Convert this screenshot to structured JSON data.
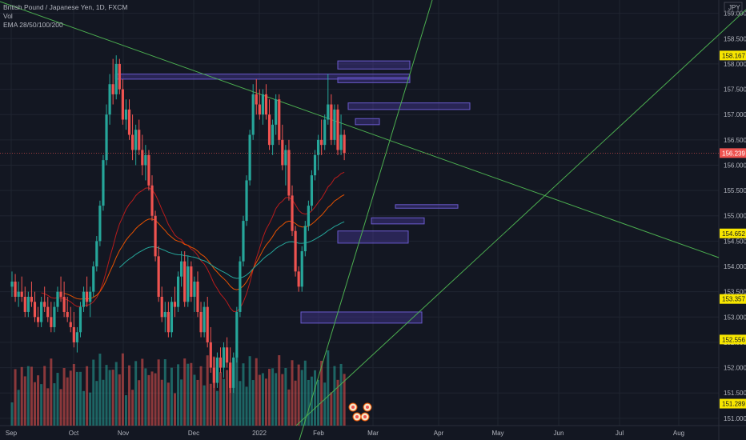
{
  "legend": {
    "symbol": "British Pound / Japanese Yen, 1D, FXCM",
    "vol": "Vol",
    "ema": "EMA 28/50/100/200"
  },
  "currency": "JPY",
  "colors": {
    "background": "#131722",
    "grid": "#1f2430",
    "up": "#26a69a",
    "down": "#ef5350",
    "trendline": "#4caf50",
    "zone_fill": "rgba(82,62,180,0.35)",
    "zone_stroke": "#6a5acd",
    "tag_yellow": "#f7e600",
    "tag_red": "#ef5350"
  },
  "price_tags": [
    {
      "value": "158.167",
      "price": 158.167,
      "style": "yellow"
    },
    {
      "value": "156.239",
      "price": 156.239,
      "style": "red"
    },
    {
      "value": "154.652",
      "price": 154.652,
      "style": "yellow"
    },
    {
      "value": "153.357",
      "price": 153.357,
      "style": "yellow"
    },
    {
      "value": "152.556",
      "price": 152.556,
      "style": "yellow"
    },
    {
      "value": "151.289",
      "price": 151.289,
      "style": "yellow"
    }
  ],
  "chart_data": {
    "type": "candlestick",
    "title": "British Pound / Japanese Yen, 1D, FXCM",
    "x_ticks": [
      "Sep",
      "Oct",
      "Nov",
      "Dec",
      "2022",
      "Feb",
      "Mar",
      "Apr",
      "May",
      "Jun",
      "Jul",
      "Aug"
    ],
    "y_ticks": [
      "159.000",
      "158.500",
      "158.000",
      "157.500",
      "157.000",
      "156.500",
      "156.000",
      "155.500",
      "155.000",
      "154.500",
      "154.000",
      "153.500",
      "153.000",
      "152.500",
      "152.000",
      "151.500",
      "151.000"
    ],
    "ylim": [
      150.95,
      159.2
    ],
    "last_price": 156.239,
    "zones": [
      {
        "from": "Nov",
        "to": "Feb",
        "high": 157.8,
        "low": 157.7
      },
      {
        "from": "Feb",
        "to": "Mar",
        "high": 158.06,
        "low": 157.9
      },
      {
        "from": "Feb",
        "to": "Mar",
        "high": 157.73,
        "low": 157.63
      },
      {
        "from": "Feb",
        "to": "Mar",
        "high": 157.23,
        "low": 157.1
      },
      {
        "from": "Feb",
        "to": "Mar",
        "high": 156.92,
        "low": 156.8
      },
      {
        "from": "Mar",
        "to": "Apr",
        "high": 155.22,
        "low": 155.15
      },
      {
        "from": "Feb",
        "to": "Mar",
        "high": 154.96,
        "low": 154.84
      },
      {
        "from": "Feb",
        "to": "Mar",
        "high": 154.7,
        "low": 154.46
      },
      {
        "from": "Jan",
        "to": "Mar",
        "high": 153.1,
        "low": 152.88
      }
    ],
    "candles": [
      [
        0,
        153.6,
        153.9,
        153.4,
        153.7
      ],
      [
        1,
        153.7,
        153.85,
        153.3,
        153.4
      ],
      [
        2,
        153.4,
        153.7,
        153.2,
        153.5
      ],
      [
        3,
        153.5,
        153.8,
        153.3,
        153.4
      ],
      [
        4,
        153.4,
        153.6,
        153.0,
        153.1
      ],
      [
        5,
        153.1,
        153.5,
        153.0,
        153.4
      ],
      [
        6,
        153.4,
        153.7,
        153.2,
        153.3
      ],
      [
        7,
        153.3,
        153.5,
        152.9,
        153.0
      ],
      [
        8,
        153.0,
        153.2,
        152.8,
        152.9
      ],
      [
        9,
        152.9,
        153.4,
        152.8,
        153.3
      ],
      [
        10,
        153.3,
        153.6,
        153.1,
        153.2
      ],
      [
        11,
        153.2,
        153.4,
        152.9,
        153.0
      ],
      [
        12,
        153.0,
        153.3,
        152.7,
        152.8
      ],
      [
        13,
        152.8,
        153.3,
        152.7,
        153.2
      ],
      [
        14,
        153.2,
        153.6,
        153.1,
        153.5
      ],
      [
        15,
        153.5,
        153.8,
        153.3,
        153.4
      ],
      [
        16,
        153.4,
        153.7,
        153.0,
        153.1
      ],
      [
        17,
        153.1,
        153.4,
        152.9,
        153.0
      ],
      [
        18,
        152.9,
        153.2,
        152.7,
        152.8
      ],
      [
        19,
        152.8,
        153.1,
        152.4,
        152.5
      ],
      [
        20,
        152.5,
        152.8,
        152.3,
        152.7
      ],
      [
        21,
        152.7,
        153.3,
        152.6,
        153.2
      ],
      [
        22,
        153.2,
        153.6,
        153.1,
        153.5
      ],
      [
        23,
        153.5,
        153.8,
        153.2,
        153.3
      ],
      [
        24,
        153.3,
        153.6,
        153.0,
        153.5
      ],
      [
        25,
        153.5,
        154.1,
        153.4,
        154.0
      ],
      [
        26,
        154.0,
        154.6,
        153.9,
        154.5
      ],
      [
        27,
        154.5,
        155.3,
        154.4,
        155.2
      ],
      [
        28,
        155.2,
        156.2,
        155.1,
        156.1
      ],
      [
        29,
        156.1,
        157.2,
        156.0,
        157.0
      ],
      [
        30,
        157.0,
        157.8,
        156.8,
        157.6
      ],
      [
        31,
        157.6,
        158.1,
        157.2,
        157.4
      ],
      [
        32,
        157.4,
        158.17,
        157.3,
        158.0
      ],
      [
        33,
        158.0,
        158.1,
        157.4,
        157.5
      ],
      [
        34,
        157.5,
        157.7,
        156.8,
        156.9
      ],
      [
        35,
        156.9,
        157.3,
        156.7,
        157.1
      ],
      [
        36,
        157.1,
        157.3,
        156.5,
        156.6
      ],
      [
        37,
        156.6,
        157.0,
        156.1,
        156.3
      ],
      [
        38,
        156.3,
        156.8,
        156.0,
        156.7
      ],
      [
        39,
        156.7,
        156.9,
        156.2,
        156.3
      ],
      [
        40,
        156.3,
        156.6,
        155.8,
        156.0
      ],
      [
        41,
        156.0,
        156.4,
        155.7,
        156.2
      ],
      [
        42,
        156.2,
        156.3,
        155.5,
        155.6
      ],
      [
        43,
        155.6,
        155.8,
        154.9,
        155.0
      ],
      [
        44,
        155.0,
        155.1,
        154.1,
        154.2
      ],
      [
        45,
        154.2,
        154.4,
        153.3,
        153.4
      ],
      [
        46,
        153.4,
        153.6,
        152.9,
        153.0
      ],
      [
        47,
        153.0,
        153.3,
        152.7,
        153.1
      ],
      [
        48,
        153.1,
        153.3,
        152.6,
        152.7
      ],
      [
        49,
        152.7,
        153.4,
        152.6,
        153.3
      ],
      [
        50,
        153.3,
        153.6,
        153.0,
        153.2
      ],
      [
        51,
        153.2,
        153.9,
        153.1,
        153.8
      ],
      [
        52,
        153.8,
        154.3,
        153.6,
        154.1
      ],
      [
        53,
        154.1,
        154.3,
        153.2,
        153.3
      ],
      [
        54,
        153.3,
        154.2,
        153.2,
        154.0
      ],
      [
        55,
        154.0,
        154.1,
        153.3,
        153.4
      ],
      [
        56,
        153.4,
        153.8,
        153.1,
        153.7
      ],
      [
        57,
        153.7,
        153.9,
        153.0,
        153.1
      ],
      [
        58,
        153.1,
        153.3,
        152.6,
        152.7
      ],
      [
        59,
        152.7,
        153.3,
        152.6,
        153.2
      ],
      [
        60,
        153.2,
        153.4,
        152.4,
        152.5
      ],
      [
        61,
        152.5,
        152.8,
        151.9,
        152.0
      ],
      [
        62,
        152.0,
        152.2,
        151.6,
        151.7
      ],
      [
        63,
        151.7,
        152.3,
        151.6,
        152.2
      ],
      [
        64,
        152.2,
        152.4,
        151.9,
        152.0
      ],
      [
        65,
        152.0,
        152.5,
        151.8,
        152.4
      ],
      [
        66,
        152.4,
        152.6,
        152.0,
        152.1
      ],
      [
        67,
        152.1,
        152.4,
        151.5,
        151.6
      ],
      [
        68,
        151.6,
        152.3,
        151.5,
        152.2
      ],
      [
        69,
        152.2,
        153.2,
        152.1,
        153.1
      ],
      [
        70,
        153.1,
        154.2,
        153.0,
        154.1
      ],
      [
        71,
        154.1,
        155.0,
        154.0,
        154.9
      ],
      [
        72,
        154.9,
        155.8,
        154.8,
        155.7
      ],
      [
        73,
        155.7,
        156.7,
        155.6,
        156.6
      ],
      [
        74,
        156.6,
        157.6,
        156.5,
        157.4
      ],
      [
        75,
        157.4,
        157.7,
        157.0,
        157.2
      ],
      [
        76,
        157.2,
        157.5,
        156.9,
        157.0
      ],
      [
        77,
        157.0,
        157.5,
        156.8,
        157.4
      ],
      [
        78,
        157.4,
        157.6,
        156.9,
        157.0
      ],
      [
        79,
        157.0,
        157.3,
        156.3,
        156.4
      ],
      [
        80,
        156.4,
        156.9,
        156.2,
        156.8
      ],
      [
        81,
        156.8,
        157.4,
        156.6,
        157.3
      ],
      [
        82,
        157.3,
        157.4,
        156.4,
        156.5
      ],
      [
        83,
        156.5,
        156.8,
        155.9,
        156.0
      ],
      [
        84,
        156.0,
        156.4,
        155.6,
        156.3
      ],
      [
        85,
        156.3,
        156.5,
        155.3,
        155.4
      ],
      [
        86,
        155.4,
        155.6,
        154.6,
        154.7
      ],
      [
        87,
        154.7,
        154.8,
        153.8,
        153.9
      ],
      [
        88,
        153.9,
        154.0,
        153.5,
        153.6
      ],
      [
        89,
        153.6,
        154.4,
        153.5,
        154.3
      ],
      [
        90,
        154.3,
        154.9,
        154.2,
        154.8
      ],
      [
        91,
        154.8,
        155.3,
        154.7,
        155.2
      ],
      [
        92,
        155.2,
        155.9,
        155.1,
        155.8
      ],
      [
        93,
        155.8,
        156.3,
        155.7,
        156.2
      ],
      [
        94,
        156.2,
        156.6,
        155.9,
        156.5
      ],
      [
        95,
        156.5,
        156.9,
        156.2,
        156.4
      ],
      [
        96,
        156.4,
        157.0,
        156.3,
        156.9
      ],
      [
        97,
        156.9,
        157.8,
        156.8,
        157.2
      ],
      [
        98,
        157.2,
        157.4,
        156.4,
        156.5
      ],
      [
        99,
        156.5,
        157.2,
        156.4,
        157.1
      ],
      [
        100,
        157.1,
        157.2,
        156.2,
        156.3
      ],
      [
        101,
        156.3,
        157.0,
        156.2,
        156.6
      ],
      [
        102,
        156.6,
        156.7,
        156.1,
        156.24
      ]
    ]
  }
}
